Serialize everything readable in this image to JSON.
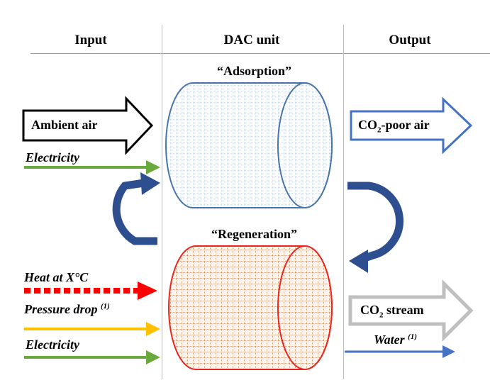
{
  "headers": {
    "input": "Input",
    "unit": "DAC unit",
    "output": "Output"
  },
  "unit": {
    "top_label": "“Adsorption”",
    "bottom_label": "“Regeneration”"
  },
  "inputs": {
    "ambient_air": "Ambient air",
    "electricity_top": "Electricity",
    "heat": "Heat at X°C",
    "pressure_drop": "Pressure drop",
    "pressure_drop_note": "(1)",
    "electricity_bottom": "Electricity"
  },
  "outputs": {
    "co2_poor_air_prefix": "CO",
    "co2_poor_air_sub": "2",
    "co2_poor_air_suffix": "-poor air",
    "co2_stream_prefix": "CO",
    "co2_stream_sub": "2",
    "co2_stream_suffix": " stream",
    "water": "Water",
    "water_note": "(1)"
  },
  "colors": {
    "adsorption_cylinder": "#4a74a8",
    "regeneration_cylinder": "#e8281e",
    "cycle_arrow": "#2e4f8f",
    "electricity_arrow": "#6aaa3c",
    "heat_arrow": "#ff0000",
    "pressure_arrow": "#ffc000",
    "water_arrow": "#4472c4",
    "co2_poor_air_arrow": "#4472c4",
    "co2_stream_arrow": "#bfbfbf"
  }
}
